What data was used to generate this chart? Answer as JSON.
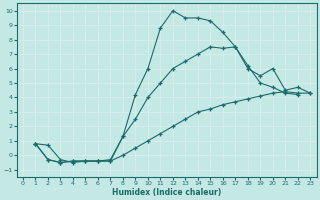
{
  "xlabel": "Humidex (Indice chaleur)",
  "bg_color": "#c4e8e4",
  "grid_color": "#b0d8d4",
  "line_color": "#1a6b6b",
  "xlim": [
    -0.5,
    23.5
  ],
  "ylim": [
    -1.5,
    10.5
  ],
  "xticks": [
    0,
    1,
    2,
    3,
    4,
    5,
    6,
    7,
    8,
    9,
    10,
    11,
    12,
    13,
    14,
    15,
    16,
    17,
    18,
    19,
    20,
    21,
    22,
    23
  ],
  "yticks": [
    -1,
    0,
    1,
    2,
    3,
    4,
    5,
    6,
    7,
    8,
    9,
    10
  ],
  "line1_x": [
    1,
    2,
    3,
    4,
    5,
    6,
    7,
    8,
    9,
    10,
    11,
    12,
    13,
    14,
    15,
    16,
    17,
    18,
    19,
    20,
    21,
    22
  ],
  "line1_y": [
    0.8,
    0.7,
    -0.3,
    -0.5,
    -0.4,
    -0.4,
    -0.4,
    1.3,
    4.2,
    6.0,
    8.8,
    10.0,
    9.5,
    9.5,
    9.3,
    8.5,
    7.5,
    6.2,
    5.0,
    4.7,
    4.3,
    4.2
  ],
  "line2_x": [
    1,
    2,
    3,
    4,
    5,
    6,
    7,
    8,
    9,
    10,
    11,
    12,
    13,
    14,
    15,
    16,
    17,
    18,
    19,
    20,
    21,
    22,
    23
  ],
  "line2_y": [
    0.8,
    -0.3,
    -0.5,
    -0.4,
    -0.4,
    -0.4,
    -0.3,
    1.3,
    2.5,
    4.0,
    5.0,
    6.0,
    6.5,
    7.0,
    7.5,
    7.4,
    7.5,
    6.0,
    5.5,
    6.0,
    4.5,
    4.7,
    4.3
  ],
  "line3_x": [
    1,
    2,
    3,
    4,
    5,
    6,
    7,
    8,
    9,
    10,
    11,
    12,
    13,
    14,
    15,
    16,
    17,
    18,
    19,
    20,
    21,
    22,
    23
  ],
  "line3_y": [
    0.8,
    -0.3,
    -0.5,
    -0.4,
    -0.4,
    -0.4,
    -0.4,
    0.0,
    0.5,
    1.0,
    1.5,
    2.0,
    2.5,
    3.0,
    3.2,
    3.5,
    3.7,
    3.9,
    4.1,
    4.3,
    4.4,
    4.3,
    4.3
  ]
}
